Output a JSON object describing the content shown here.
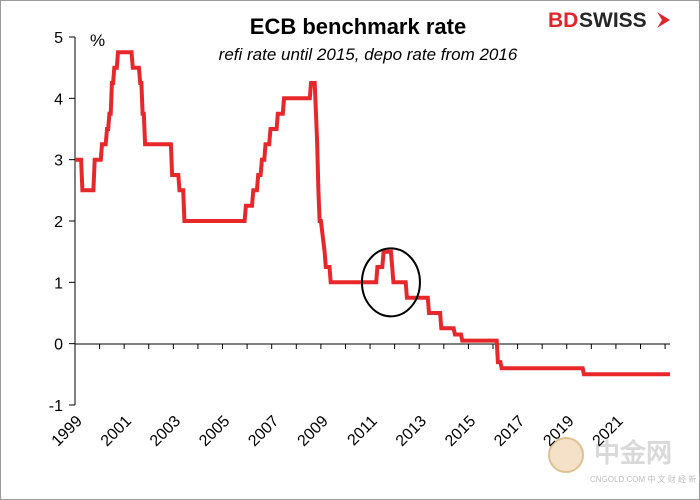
{
  "chart_data": {
    "type": "line",
    "title": "ECB benchmark rate",
    "subtitle": "refi rate until 2015, depo rate from 2016",
    "ylabel": "%",
    "xlabel": "",
    "ylim": [
      -1,
      5
    ],
    "xlim": [
      1999,
      2023.2
    ],
    "yticks": [
      5,
      4,
      3,
      2,
      1,
      0,
      -1
    ],
    "xticks": [
      "1999",
      "2001",
      "2003",
      "2005",
      "2007",
      "2009",
      "2011",
      "2013",
      "2015",
      "2017",
      "2019",
      "2021"
    ],
    "grid": false,
    "legend": "none",
    "series": [
      {
        "color": "#e8272a",
        "x": [
          1999.0,
          1999.25,
          1999.3,
          1999.75,
          1999.8,
          2000.05,
          2000.1,
          2000.25,
          2000.3,
          2000.35,
          2000.4,
          2000.45,
          2000.5,
          2000.55,
          2000.6,
          2000.7,
          2000.75,
          2000.8,
          2000.85,
          2001.3,
          2001.35,
          2001.6,
          2001.65,
          2001.7,
          2001.75,
          2001.8,
          2001.85,
          2001.9,
          2001.95,
          2002.9,
          2002.95,
          2003.2,
          2003.25,
          2003.4,
          2003.45,
          2005.9,
          2005.95,
          2006.2,
          2006.25,
          2006.4,
          2006.45,
          2006.55,
          2006.6,
          2006.7,
          2006.75,
          2006.9,
          2006.95,
          2007.2,
          2007.25,
          2007.45,
          2007.5,
          2008.55,
          2008.6,
          2008.75,
          2008.8,
          2008.85,
          2008.9,
          2008.95,
          2009.0,
          2009.15,
          2009.2,
          2009.35,
          2009.4,
          2011.25,
          2011.3,
          2011.5,
          2011.55,
          2011.85,
          2011.9,
          2011.95,
          2012.45,
          2012.5,
          2013.35,
          2013.4,
          2013.85,
          2013.9,
          2014.4,
          2014.45,
          2014.7,
          2014.75,
          2015.0,
          2016.15,
          2016.2,
          2016.3,
          2016.35,
          2019.65,
          2019.7,
          2023.2
        ],
        "values": [
          3.0,
          3.0,
          2.5,
          2.5,
          3.0,
          3.0,
          3.25,
          3.25,
          3.5,
          3.5,
          3.75,
          3.75,
          4.25,
          4.25,
          4.5,
          4.5,
          4.75,
          4.75,
          4.75,
          4.75,
          4.5,
          4.5,
          4.25,
          4.25,
          3.75,
          3.75,
          3.25,
          3.25,
          3.25,
          3.25,
          2.75,
          2.75,
          2.5,
          2.5,
          2.0,
          2.0,
          2.25,
          2.25,
          2.5,
          2.5,
          2.75,
          2.75,
          3.0,
          3.0,
          3.25,
          3.25,
          3.5,
          3.5,
          3.75,
          3.75,
          4.0,
          4.0,
          4.25,
          4.25,
          3.75,
          3.25,
          2.5,
          2.0,
          2.0,
          1.5,
          1.25,
          1.25,
          1.0,
          1.0,
          1.25,
          1.25,
          1.5,
          1.5,
          1.25,
          1.0,
          1.0,
          0.75,
          0.75,
          0.5,
          0.5,
          0.25,
          0.25,
          0.15,
          0.15,
          0.05,
          0.05,
          0.05,
          -0.3,
          -0.3,
          -0.4,
          -0.4,
          -0.5,
          -0.5
        ]
      }
    ],
    "annotations": [
      {
        "type": "ellipse",
        "x": 2011.85,
        "y": 1.0
      }
    ]
  },
  "branding": {
    "logo_left": "BD",
    "logo_right": "SWISS",
    "watermark_big": "中金网",
    "watermark_small": "CNGOLD.COM  中 文 财 经 新 媒 体"
  },
  "colors": {
    "line": "#e8272a",
    "axis": "#000000",
    "logo_red": "#e5242a"
  }
}
